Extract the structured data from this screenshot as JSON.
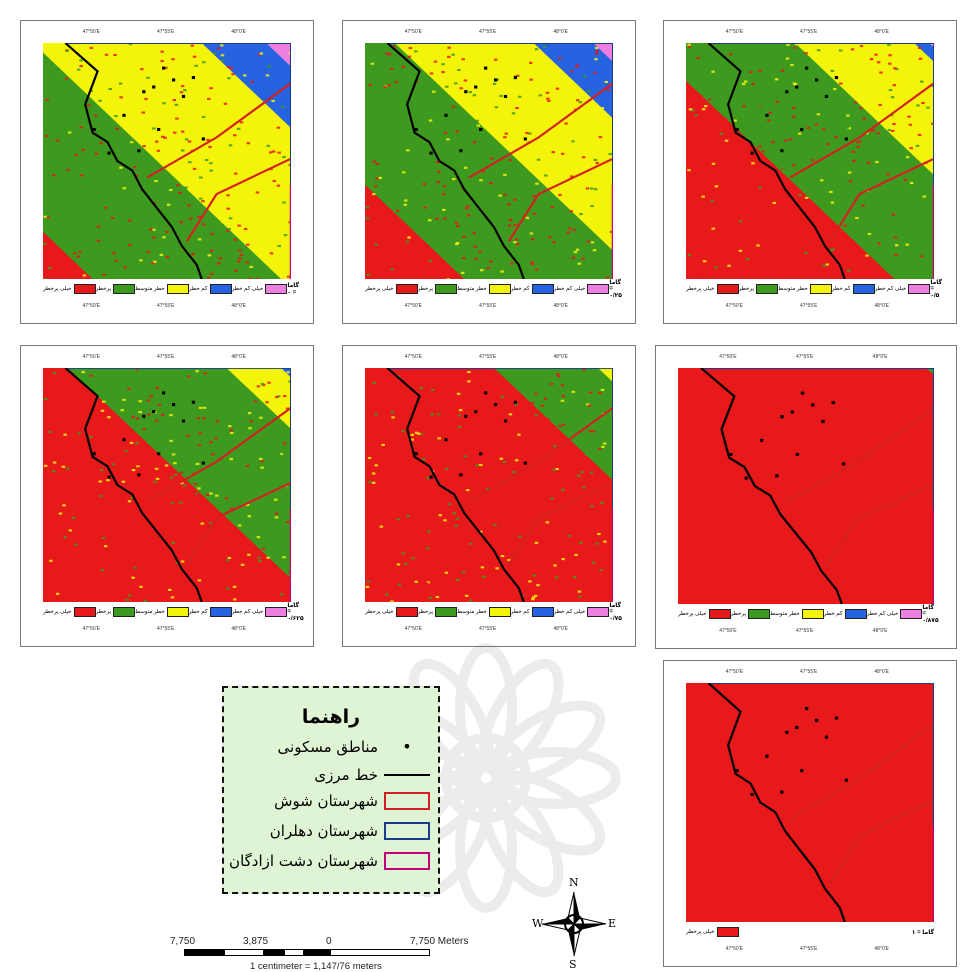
{
  "map_panels": [
    {
      "id": "p1",
      "gamma_label": "گاما = ۰",
      "classes": [
        "خیلی کم خطر",
        "کم خطر",
        "خطر متوسط",
        "پرخطر",
        "خیلی پرخطر"
      ]
    },
    {
      "id": "p2",
      "gamma_label": "گاما = ۰/۲۵",
      "classes": [
        "خیلی کم خطر",
        "کم خطر",
        "خطر متوسط",
        "پرخطر",
        "خیلی پرخطر"
      ]
    },
    {
      "id": "p3",
      "gamma_label": "گاما = ۰/۵",
      "classes": [
        "خیلی کم خطر",
        "کم خطر",
        "خطر متوسط",
        "پرخطر",
        "خیلی پرخطر"
      ]
    },
    {
      "id": "p4",
      "gamma_label": "گاما = ۰/۶۲۵",
      "classes": [
        "خیلی کم خطر",
        "کم خطر",
        "خطر متوسط",
        "پرخطر",
        "خیلی پرخطر"
      ]
    },
    {
      "id": "p5",
      "gamma_label": "گاما = ۰/۷۵",
      "classes": [
        "خیلی کم خطر",
        "کم خطر",
        "خطر متوسط",
        "پرخطر",
        "خیلی پرخطر"
      ]
    },
    {
      "id": "p6",
      "gamma_label": "گاما = ۰/۸۷۵",
      "classes": [
        "خیلی کم خطر",
        "کم خطر",
        "خطر متوسط",
        "پرخطر",
        "خیلی پرخطر"
      ]
    },
    {
      "id": "p7",
      "gamma_label": "گاما = ۱",
      "classes": [
        "خیلی پرخطر"
      ]
    }
  ],
  "colors": {
    "very_low": "#ee7fe0",
    "low": "#2563e0",
    "medium": "#f4f40a",
    "high": "#3d9a1f",
    "very_high": "#e8191b",
    "border_line": "#000000",
    "shush": "#d42020",
    "dehloran": "#1a3c8c",
    "azadegan": "#c0007a",
    "legend_bg": "#dff4d4"
  },
  "legend": {
    "title": "راهنما",
    "items": [
      {
        "label": "مناطق مسکونی",
        "kind": "dot"
      },
      {
        "label": "خط مرزی",
        "kind": "line"
      },
      {
        "label": "شهرستان شوش",
        "kind": "box",
        "color": "#d42020"
      },
      {
        "label": "شهرستان دهلران",
        "kind": "box",
        "color": "#1a3c8c"
      },
      {
        "label": "شهرستان دشت ازادگان",
        "kind": "box",
        "color": "#c0007a"
      }
    ]
  },
  "scale": {
    "l0": "7,750",
    "l1": "3,875",
    "l2": "0",
    "l3": "7,750 Meters",
    "note": "1 centimeter = 1,147/76 meters"
  },
  "compass": {
    "n": "N",
    "s": "S",
    "e": "E",
    "w": "W"
  }
}
